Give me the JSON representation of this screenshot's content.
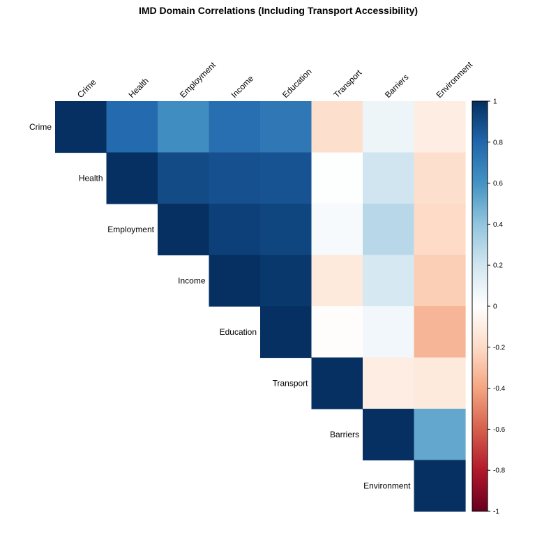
{
  "chart_data": {
    "type": "heatmap",
    "title": "IMD Domain Correlations (Including Transport Accessibility)",
    "variables": [
      "Crime",
      "Health",
      "Employment",
      "Income",
      "Education",
      "Transport",
      "Barriers",
      "Environment"
    ],
    "matrix_upper": [
      [
        1.0,
        0.78,
        0.62,
        0.76,
        0.72,
        -0.18,
        0.08,
        -0.1
      ],
      [
        null,
        1.0,
        0.9,
        0.88,
        0.87,
        0.01,
        0.2,
        -0.18
      ],
      [
        null,
        null,
        1.0,
        0.94,
        0.92,
        0.04,
        0.28,
        -0.2
      ],
      [
        null,
        null,
        null,
        1.0,
        0.97,
        -0.12,
        0.18,
        -0.25
      ],
      [
        null,
        null,
        null,
        null,
        1.0,
        -0.01,
        0.06,
        -0.34
      ],
      [
        null,
        null,
        null,
        null,
        null,
        1.0,
        -0.1,
        -0.12
      ],
      [
        null,
        null,
        null,
        null,
        null,
        null,
        1.0,
        0.52
      ],
      [
        null,
        null,
        null,
        null,
        null,
        null,
        null,
        1.0
      ]
    ],
    "colorbar": {
      "range": [
        -1,
        1
      ],
      "ticks": [
        "1",
        "0.8",
        "0.6",
        "0.4",
        "0.2",
        "0",
        "-0.2",
        "-0.4",
        "-0.6",
        "-0.8",
        "-1"
      ],
      "tick_values": [
        1,
        0.8,
        0.6,
        0.4,
        0.2,
        0,
        -0.2,
        -0.4,
        -0.6,
        -0.8,
        -1
      ],
      "colors": [
        "#67001F",
        "#B2182B",
        "#D6604D",
        "#F4A582",
        "#FDDBC7",
        "#FFFFFF",
        "#D1E5F0",
        "#92C5DE",
        "#4393C3",
        "#2166AC",
        "#053061"
      ]
    },
    "layout": "upper-triangle"
  }
}
